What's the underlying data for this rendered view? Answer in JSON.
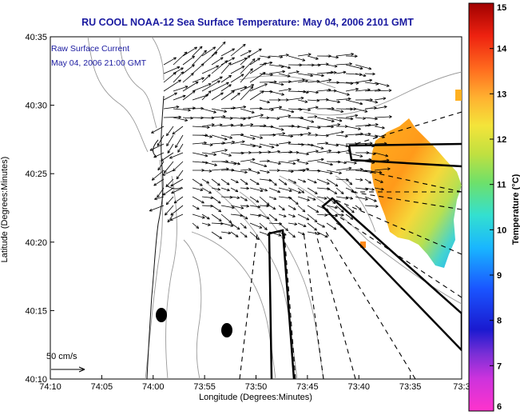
{
  "title": "RU COOL  NOAA-12  Sea Surface Temperature:  May 04, 2006 2101 GMT",
  "legend": {
    "line1": "Raw Surface Current",
    "line2": "May 04, 2006 21:00 GMT",
    "scale_label": "50 cm/s"
  },
  "axes": {
    "xlabel": "Longitude (Degrees:Minutes)",
    "ylabel": "Latitude (Degrees:Minutes)",
    "xticks": [
      "74:10",
      "74:05",
      "74:00",
      "73:55",
      "73:50",
      "73:45",
      "73:40",
      "73:35",
      "73:3"
    ],
    "yticks": [
      "40:35",
      "40:30",
      "40:25",
      "40:20",
      "40:15",
      "40:10"
    ]
  },
  "colorbar": {
    "label": "Temperature (°C)",
    "ticks": [
      "15",
      "14",
      "13",
      "12",
      "11",
      "10",
      "9",
      "8",
      "7",
      "6"
    ],
    "range": [
      6,
      15
    ]
  },
  "colors": {
    "title": "#1a1aa0",
    "land": "#ffffff",
    "water": "#ffffff",
    "contour": "#999999"
  }
}
